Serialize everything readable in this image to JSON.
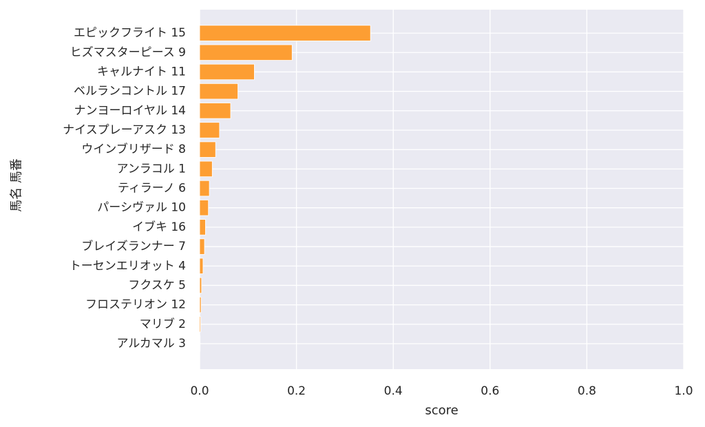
{
  "chart_data": {
    "type": "bar",
    "orientation": "horizontal",
    "categories": [
      "エピックフライト 15",
      "ヒズマスターピース 9",
      "キャルナイト 11",
      "ベルランコントル 17",
      "ナンヨーロイヤル 14",
      "ナイスプレーアスク 13",
      "ウインブリザード 8",
      "アンラコル 1",
      "ティラーノ 6",
      "パーシヴァル 10",
      "イブキ 16",
      "ブレイズランナー 7",
      "トーセンエリオット 4",
      "フクスケ 5",
      "フロステリオン 12",
      "マリブ 2",
      "アルカマル 3"
    ],
    "values": [
      0.353,
      0.191,
      0.113,
      0.079,
      0.064,
      0.041,
      0.033,
      0.026,
      0.02,
      0.018,
      0.012,
      0.01,
      0.007,
      0.004,
      0.003,
      0.002,
      0.001
    ],
    "xlabel": "score",
    "ylabel": "馬名 馬番",
    "xlim": [
      0,
      1.0
    ],
    "xticks": [
      "0.0",
      "0.2",
      "0.4",
      "0.6",
      "0.8",
      "1.0"
    ],
    "grid": true,
    "bar_color": "#fd9e33",
    "background_color": "#eaeaf2"
  }
}
